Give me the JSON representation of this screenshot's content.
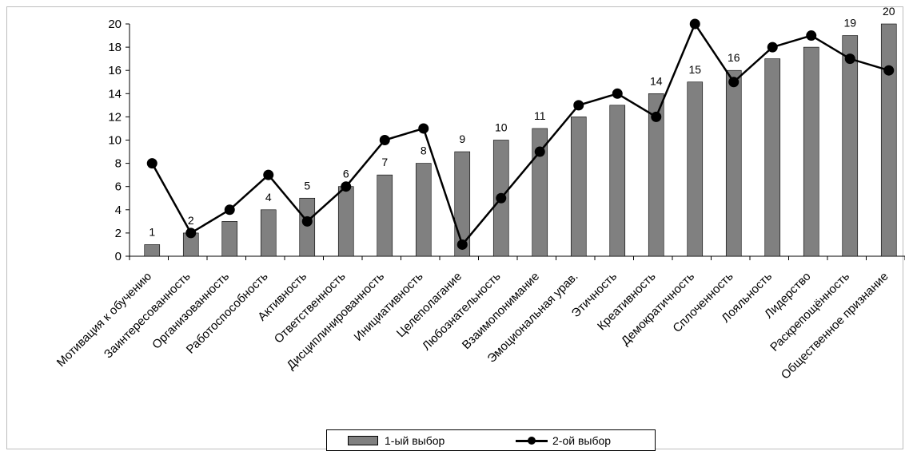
{
  "chart_data": {
    "type": "bar",
    "title": "",
    "xlabel": "",
    "ylabel": "",
    "ylim": [
      0,
      20
    ],
    "yticks": [
      0,
      2,
      4,
      6,
      8,
      10,
      12,
      14,
      16,
      18,
      20
    ],
    "grid": false,
    "legend_position": "bottom",
    "categories": [
      "Мотивация к обучению",
      "Заинтересованность",
      "Организованность",
      "Работоспособность",
      "Активность",
      "Ответственность",
      "Дисциплинированность",
      "Инициативность",
      "Целеполагание",
      "Любознательность",
      "Взаимопонимание",
      "Эмоциональная урав.",
      "Этичность",
      "Креативность",
      "Демократичность",
      "Сплоченность",
      "Лояльность",
      "Лидерство",
      "Раскрепощённость",
      "Общественное признание"
    ],
    "series": [
      {
        "name": "1-ый выбор",
        "type": "bar",
        "color": "#808080",
        "values": [
          1,
          2,
          3,
          4,
          5,
          6,
          7,
          8,
          9,
          10,
          11,
          12,
          13,
          14,
          15,
          16,
          17,
          18,
          19,
          20
        ],
        "data_labels": [
          "1",
          "2",
          "",
          "4",
          "5",
          "6",
          "7",
          "8",
          "9",
          "10",
          "11",
          "",
          "",
          "14",
          "15",
          "16",
          "",
          "",
          "19",
          "20"
        ]
      },
      {
        "name": "2-ой выбор",
        "type": "line",
        "color": "#000000",
        "marker": "circle",
        "values": [
          8,
          2,
          4,
          7,
          3,
          6,
          10,
          11,
          1,
          5,
          9,
          13,
          14,
          12,
          20,
          15,
          18,
          19,
          17,
          16
        ]
      }
    ]
  },
  "legend": {
    "bar_label": "1-ый выбор",
    "line_label": "2-ой выбор"
  }
}
